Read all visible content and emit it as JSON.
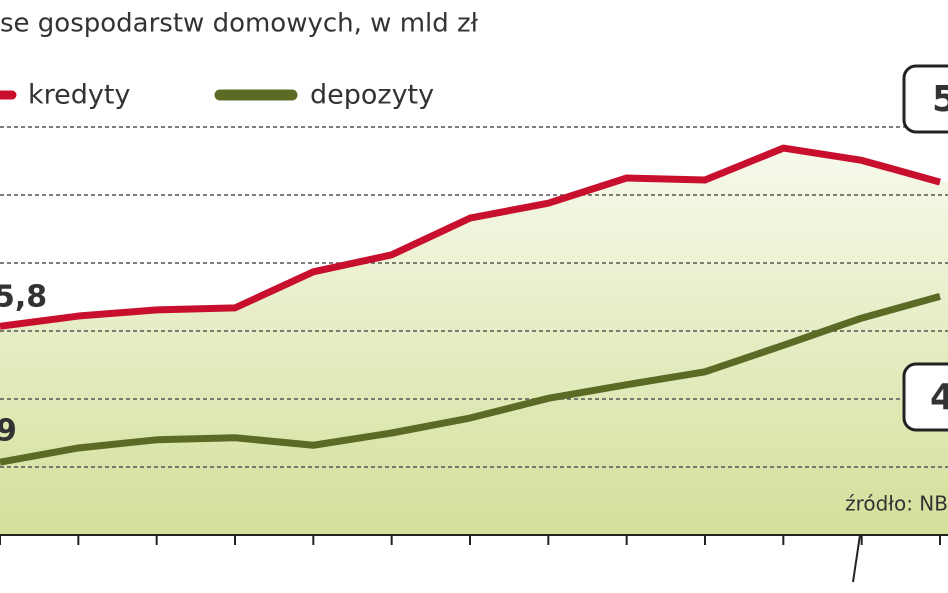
{
  "chart_data": {
    "type": "line",
    "title": "se gospodarstw domowych, w mld zł",
    "categories": [
      null,
      null,
      null,
      null,
      null,
      null,
      null,
      null,
      null,
      null,
      null,
      null,
      null
    ],
    "series": [
      {
        "name": "kredyty",
        "color": "#c8102e",
        "values": [
          3.07,
          3.22,
          3.31,
          3.34,
          3.87,
          4.12,
          4.66,
          4.88,
          5.25,
          5.22,
          5.69,
          5.51,
          5.19
        ]
      },
      {
        "name": "depozyty",
        "color": "#5b6b26",
        "values": [
          1.07,
          1.28,
          1.4,
          1.43,
          1.32,
          1.5,
          1.72,
          2.01,
          2.21,
          2.4,
          2.79,
          3.19,
          3.51
        ]
      }
    ],
    "ylim": [
      0,
      7
    ],
    "yticks": [
      1,
      2,
      3,
      4,
      5,
      6
    ],
    "grid": true,
    "annotations": [
      "5,8",
      "9",
      "5",
      "4"
    ],
    "source": "źródło: NB"
  }
}
